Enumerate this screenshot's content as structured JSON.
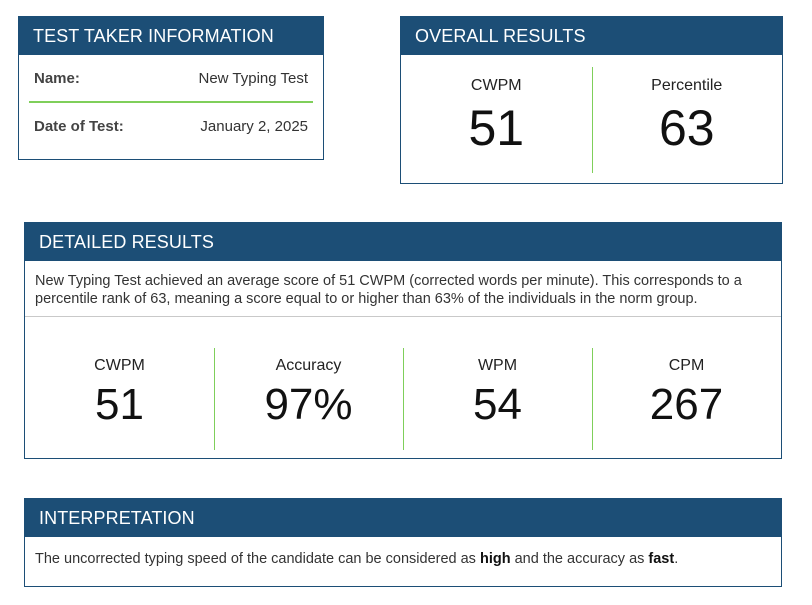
{
  "test_taker": {
    "title": "TEST TAKER INFORMATION",
    "name_label": "Name:",
    "name_value": "New Typing Test",
    "date_label": "Date of Test:",
    "date_value": "January 2, 2025"
  },
  "overall": {
    "title": "OVERALL RESULTS",
    "metrics": [
      {
        "label": "CWPM",
        "value": "51"
      },
      {
        "label": "Percentile",
        "value": "63"
      }
    ]
  },
  "detailed": {
    "title": "DETAILED RESULTS",
    "description": "New Typing Test achieved an average score of 51 CWPM (corrected words per minute). This corresponds to a percentile rank of 63, meaning a score equal to or higher than 63% of the individuals in the norm group.",
    "metrics": [
      {
        "label": "CWPM",
        "value": "51"
      },
      {
        "label": "Accuracy",
        "value": "97%"
      },
      {
        "label": "WPM",
        "value": "54"
      },
      {
        "label": "CPM",
        "value": "267"
      }
    ]
  },
  "interpretation": {
    "title": "INTERPRETATION",
    "text_before": "The uncorrected typing speed of the candidate can be considered as ",
    "speed_level": "high",
    "text_middle": " and the accuracy as ",
    "accuracy_level": "fast",
    "text_after": "."
  },
  "colors": {
    "header_bg": "#1c4e76",
    "divider_green": "#7fcf5a"
  }
}
